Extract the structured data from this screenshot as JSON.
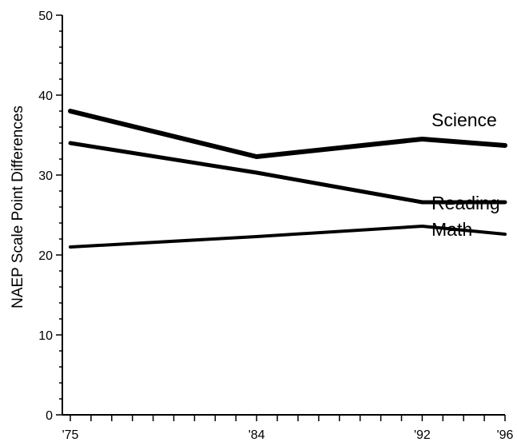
{
  "chart_data": {
    "type": "line",
    "ylabel": "NAEP Scale Point Differences",
    "xlabel": "",
    "title": "",
    "ylim": [
      0,
      50
    ],
    "yticks": [
      0,
      10,
      20,
      30,
      40,
      50
    ],
    "x": [
      1975,
      1984,
      1992,
      1996
    ],
    "xlim": [
      1975,
      1996
    ],
    "xtick_labels": [
      "'75",
      "'84",
      "'92",
      "'96"
    ],
    "minor_x_ticks_every_year": true,
    "grid": false,
    "legend": "none; series names printed at right end of each line",
    "series": [
      {
        "name": "Science",
        "values": [
          38,
          32.3,
          34.5,
          33.7
        ]
      },
      {
        "name": "Reading",
        "values": [
          34,
          30.3,
          26.6,
          26.6
        ]
      },
      {
        "name": "Math",
        "values": [
          21,
          22.3,
          23.6,
          22.6
        ]
      }
    ]
  }
}
